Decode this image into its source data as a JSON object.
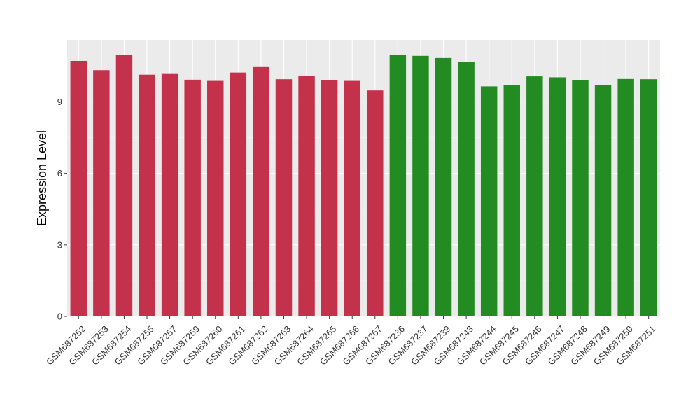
{
  "chart_data": {
    "type": "bar",
    "title": "",
    "xlabel": "",
    "ylabel": "Expression Level",
    "ylim": [
      0,
      11.6
    ],
    "yticks": [
      0,
      3,
      6,
      9
    ],
    "grid": true,
    "legend": "none",
    "colors": {
      "group1": "#C3314A",
      "group2": "#228B22",
      "panel_bg": "#EBEBEB",
      "grid_major": "#FFFFFF"
    },
    "categories": [
      "GSM687252",
      "GSM687253",
      "GSM687254",
      "GSM687255",
      "GSM687257",
      "GSM687259",
      "GSM687260",
      "GSM687261",
      "GSM687262",
      "GSM687263",
      "GSM687264",
      "GSM687265",
      "GSM687266",
      "GSM687267",
      "GSM687236",
      "GSM687237",
      "GSM687239",
      "GSM687243",
      "GSM687244",
      "GSM687245",
      "GSM687246",
      "GSM687247",
      "GSM687248",
      "GSM687249",
      "GSM687250",
      "GSM687251"
    ],
    "values": [
      10.72,
      10.33,
      10.98,
      10.14,
      10.17,
      9.93,
      9.88,
      10.23,
      10.46,
      9.95,
      10.1,
      9.92,
      9.88,
      9.48,
      10.96,
      10.93,
      10.84,
      10.69,
      9.65,
      9.72,
      10.07,
      10.03,
      9.92,
      9.7,
      9.96,
      9.95
    ],
    "groups": [
      "group1",
      "group1",
      "group1",
      "group1",
      "group1",
      "group1",
      "group1",
      "group1",
      "group1",
      "group1",
      "group1",
      "group1",
      "group1",
      "group1",
      "group2",
      "group2",
      "group2",
      "group2",
      "group2",
      "group2",
      "group2",
      "group2",
      "group2",
      "group2",
      "group2",
      "group2"
    ]
  }
}
